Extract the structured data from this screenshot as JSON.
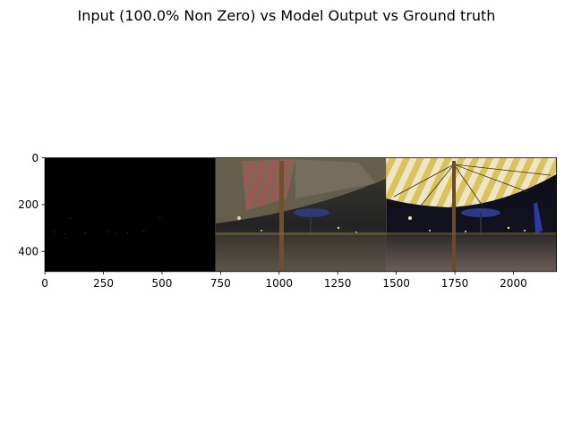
{
  "chart_data": {
    "type": "image",
    "title": "Input (100.0% Non Zero) vs Model Output vs Ground truth",
    "xlabel": "",
    "ylabel": "",
    "xlim": [
      0,
      2184
    ],
    "ylim": [
      486,
      0
    ],
    "x_ticks": [
      0,
      250,
      500,
      750,
      1000,
      1250,
      1500,
      1750,
      2000
    ],
    "y_ticks": [
      0,
      200,
      400
    ],
    "grid": false,
    "panels": [
      {
        "image": "input-dark-panel",
        "x_range": [
          0,
          728
        ]
      },
      {
        "image": "model-output-panel",
        "x_range": [
          728,
          1456
        ]
      },
      {
        "image": "ground-truth-panel",
        "x_range": [
          1456,
          2184
        ]
      }
    ]
  }
}
